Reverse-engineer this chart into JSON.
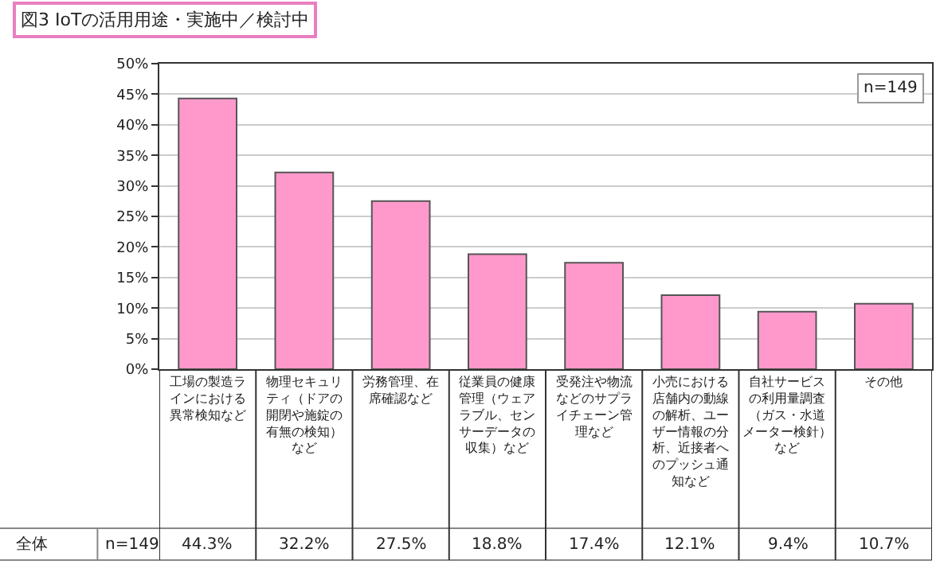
{
  "chart_data": {
    "type": "bar",
    "title": "図3 IoTの活用用途・実施中／検討中",
    "categories": [
      "工場の製造ラインにおける異常検知など",
      "物理セキュリティ（ドアの開閉や施錠の有無の検知）など",
      "労務管理、在席確認など",
      "従業員の健康管理（ウェアラブル、センサーデータの収集）など",
      "受発注や物流などのサプライチェーン管理など",
      "小売における店舗内の動線の解析、ユーザー情報の分析、近接者へのプッシュ通知など",
      "自社サービスの利用量調査（ガス・水道メーター検針）など",
      "その他"
    ],
    "values": [
      44.3,
      32.2,
      27.5,
      18.8,
      17.4,
      12.1,
      9.4,
      10.7
    ],
    "value_labels": [
      "44.3%",
      "32.2%",
      "27.5%",
      "18.8%",
      "17.4%",
      "12.1%",
      "9.4%",
      "10.7%"
    ],
    "color": "#ff99cc",
    "ylim": [
      0,
      50
    ],
    "yticks": [
      {
        "value": 0,
        "label": "0%"
      },
      {
        "value": 5,
        "label": "5%"
      },
      {
        "value": 10,
        "label": "10%"
      },
      {
        "value": 15,
        "label": "15%"
      },
      {
        "value": 20,
        "label": "20%"
      },
      {
        "value": 25,
        "label": "25%"
      },
      {
        "value": 30,
        "label": "30%"
      },
      {
        "value": 35,
        "label": "35%"
      },
      {
        "value": 40,
        "label": "40%"
      },
      {
        "value": 45,
        "label": "45%"
      },
      {
        "value": 50,
        "label": "50%"
      }
    ],
    "grid": "y",
    "annotations": [
      "n=149",
      "全体",
      "n=149"
    ]
  }
}
